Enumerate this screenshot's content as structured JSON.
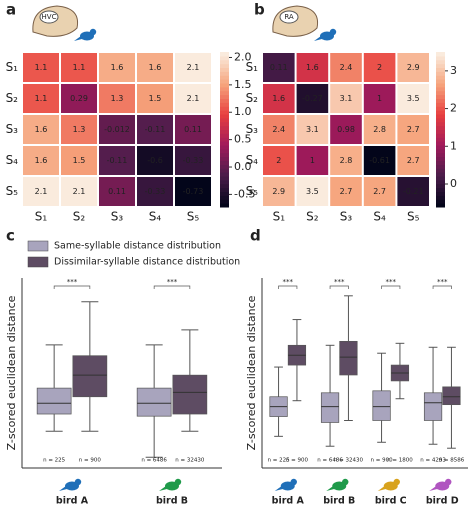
{
  "chart_data": [
    {
      "type": "heatmap",
      "label": "a",
      "brain_label": "HVC",
      "rows": [
        "S₁",
        "S₂",
        "S₃",
        "S₄",
        "S₅"
      ],
      "columns": [
        "S₁",
        "S₂",
        "S₃",
        "S₄",
        "S₅"
      ],
      "values": [
        [
          1.1,
          1.1,
          1.6,
          1.6,
          2.1
        ],
        [
          1.1,
          0.29,
          1.3,
          1.5,
          2.1
        ],
        [
          1.6,
          1.3,
          -0.012,
          -0.11,
          0.11
        ],
        [
          1.6,
          1.5,
          -0.11,
          -0.6,
          -0.33
        ],
        [
          2.1,
          2.1,
          0.11,
          -0.33,
          -0.73
        ]
      ],
      "clim": [
        -0.73,
        2.1
      ],
      "cticks": [
        -0.5,
        {
          "value": 0,
          "label": "0.0"
        },
        0.5,
        {
          "value": 1,
          "label": "1.0"
        },
        1.5,
        {
          "value": 2,
          "label": "2.0"
        }
      ],
      "colormap": [
        "#03051a",
        "#4c1d4b",
        "#a11a5b",
        "#e83f3f",
        "#f6a47c",
        "#faebdd"
      ],
      "icon_color": "#1f6fb8"
    },
    {
      "type": "heatmap",
      "label": "b",
      "brain_label": "RA",
      "rows": [
        "S₁",
        "S₂",
        "S₃",
        "S₄",
        "S₅"
      ],
      "columns": [
        "S₁",
        "S₂",
        "S₃",
        "S₄",
        "S₅"
      ],
      "values": [
        [
          0.11,
          1.6,
          2.4,
          2,
          2.9
        ],
        [
          1.6,
          -0.27,
          3.1,
          1,
          3.5
        ],
        [
          2.4,
          3.1,
          0.98,
          2.8,
          2.7
        ],
        [
          2,
          1,
          2.8,
          -0.61,
          2.7
        ],
        [
          2.9,
          3.5,
          2.7,
          2.7,
          -0.21
        ]
      ],
      "clim": [
        -0.61,
        3.5
      ],
      "cticks": [
        0,
        1,
        2,
        3
      ],
      "colormap": [
        "#03051a",
        "#4c1d4b",
        "#a11a5b",
        "#e83f3f",
        "#f6a47c",
        "#faebdd"
      ],
      "icon_color": "#1f6fb8"
    },
    {
      "type": "box",
      "label": "c",
      "ylabel": "Z-scored euclidean distance",
      "ylim": [
        -3.2,
        5.6
      ],
      "categories": [
        "bird A",
        "bird B"
      ],
      "category_colors": [
        "#1f6fb8",
        "#1f9a4a"
      ],
      "annotations": [
        "***",
        "***"
      ],
      "series": [
        {
          "name": "Same-syllable distance distribution",
          "color": "#a8a4bd",
          "boxes": [
            {
              "whislo": -1.5,
              "q1": -0.7,
              "med": -0.2,
              "q3": 0.5,
              "whishi": 2.5,
              "n_label": "n = 225"
            },
            {
              "whislo": -2.7,
              "q1": -0.8,
              "med": -0.2,
              "q3": 0.5,
              "whishi": 2.5,
              "n_label": "n = 6486"
            }
          ]
        },
        {
          "name": "Dissimilar-syllable distance distribution",
          "color": "#5e4c63",
          "boxes": [
            {
              "whislo": -1.5,
              "q1": 0.1,
              "med": 1.1,
              "q3": 2.0,
              "whishi": 4.5,
              "n_label": "n = 900"
            },
            {
              "whislo": -1.5,
              "q1": -0.7,
              "med": 0.3,
              "q3": 1.1,
              "whishi": 3.2,
              "n_label": "n = 32430"
            }
          ]
        }
      ]
    },
    {
      "type": "box",
      "label": "d",
      "ylabel": "Z-scored euclidean distance",
      "ylim": [
        -3.2,
        6.4
      ],
      "categories": [
        "bird A",
        "bird B",
        "bird C",
        "bird D"
      ],
      "category_colors": [
        "#1f6fb8",
        "#1f9a4a",
        "#d8a21c",
        "#b055c0"
      ],
      "annotations": [
        "***",
        "***",
        "***",
        "***"
      ],
      "series": [
        {
          "color": "#a8a4bd",
          "boxes": [
            {
              "whislo": -1.6,
              "q1": -0.6,
              "med": -0.1,
              "q3": 0.4,
              "whishi": 1.9,
              "n_label": "n = 225"
            },
            {
              "whislo": -2.1,
              "q1": -0.9,
              "med": -0.1,
              "q3": 0.6,
              "whishi": 3.0,
              "n_label": "n = 6486"
            },
            {
              "whislo": -1.9,
              "q1": -0.8,
              "med": -0.1,
              "q3": 0.7,
              "whishi": 2.6,
              "n_label": "n = 900"
            },
            {
              "whislo": -2.0,
              "q1": -0.8,
              "med": 0.1,
              "q3": 0.6,
              "whishi": 2.9,
              "n_label": "n = 4293"
            }
          ]
        },
        {
          "color": "#5e4c63",
          "boxes": [
            {
              "whislo": 0.2,
              "q1": 2.0,
              "med": 2.5,
              "q3": 3.0,
              "whishi": 4.3,
              "n_label": "n = 900"
            },
            {
              "whislo": -0.8,
              "q1": 1.5,
              "med": 2.4,
              "q3": 3.2,
              "whishi": 5.5,
              "n_label": "n = 32430"
            },
            {
              "whislo": 0.3,
              "q1": 1.2,
              "med": 1.6,
              "q3": 2.0,
              "whishi": 3.1,
              "n_label": "n = 1800"
            },
            {
              "whislo": -2.2,
              "q1": 0.0,
              "med": 0.4,
              "q3": 0.9,
              "whishi": 2.9,
              "n_label": "n = 8586"
            }
          ]
        }
      ]
    }
  ]
}
